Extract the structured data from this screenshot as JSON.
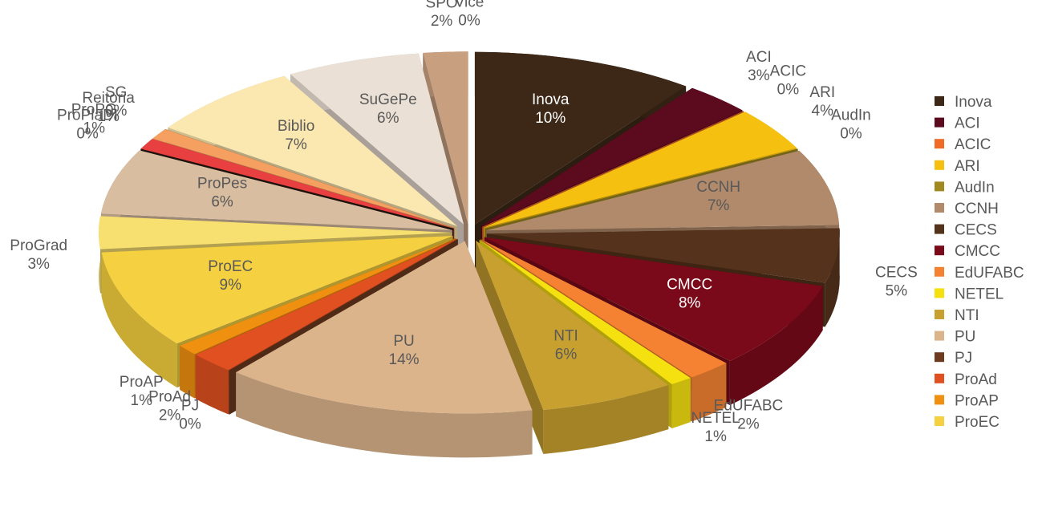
{
  "chart_data": {
    "type": "pie3d",
    "categories": [
      "Inova",
      "ACI",
      "ACIC",
      "ARI",
      "AudIn",
      "CCNH",
      "CECS",
      "CMCC",
      "EdUFABC",
      "NETEL",
      "NTI",
      "PU",
      "PJ",
      "ProAd",
      "ProAP",
      "ProEC",
      "ProGrad",
      "ProPes",
      "ProPlaDI",
      "ProPG",
      "Reitoria",
      "SG",
      "Biblio",
      "SuGePe",
      "SPO",
      "Vice"
    ],
    "values": [
      10,
      3,
      0,
      4,
      0,
      7,
      5,
      8,
      2,
      1,
      6,
      14,
      0,
      2,
      1,
      9,
      3,
      6,
      0,
      1,
      1,
      0,
      7,
      6,
      2,
      0
    ],
    "value_labels": [
      "10%",
      "3%",
      "0%",
      "4%",
      "0%",
      "7%",
      "5%",
      "8%",
      "2%",
      "1%",
      "6%",
      "14%",
      "0%",
      "2%",
      "1%",
      "9%",
      "3%",
      "6%",
      "0%",
      "1%",
      "1%",
      "0%",
      "7%",
      "6%",
      "2%",
      "0%"
    ],
    "colors": [
      "#3d2817",
      "#5c0a1e",
      "#f06a28",
      "#f5c010",
      "#a08a20",
      "#b08a6a",
      "#55321b",
      "#7a0a1a",
      "#f58232",
      "#f5e010",
      "#c8a030",
      "#dcb48c",
      "#6e3a20",
      "#e05020",
      "#f09010",
      "#f5d040",
      "#f8e070",
      "#d9bda0",
      "#2a1a10",
      "#e84040",
      "#f5a060",
      "#f8c880",
      "#fbe8b0",
      "#ebe0d5",
      "#c8a080",
      "#8a5a30"
    ],
    "legend": [
      "Inova",
      "ACI",
      "ACIC",
      "ARI",
      "AudIn",
      "CCNH",
      "CECS",
      "CMCC",
      "EdUFABC",
      "NETEL",
      "NTI",
      "PU",
      "PJ",
      "ProAd",
      "ProAP",
      "ProEC"
    ]
  }
}
